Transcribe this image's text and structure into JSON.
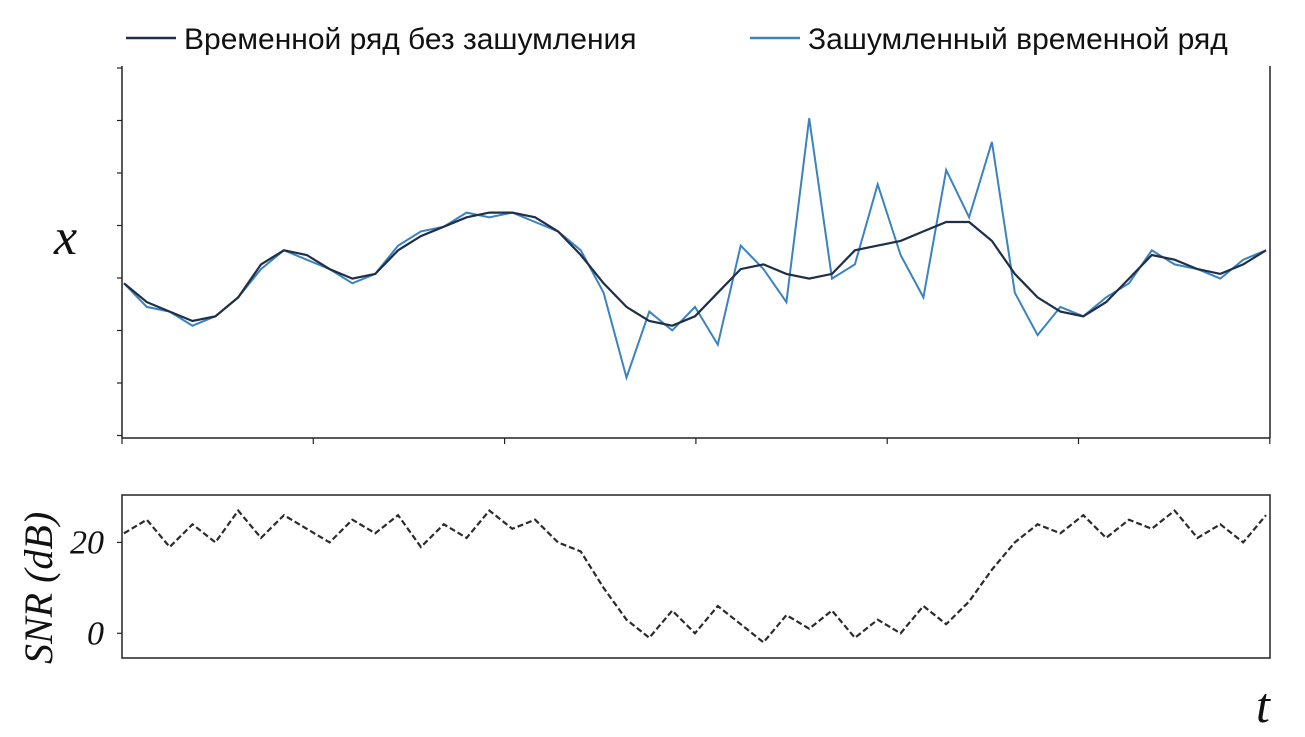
{
  "colors": {
    "clean": "#1f2f4a",
    "noisy": "#3a83c0",
    "snr": "#2b2b2b",
    "axis": "#222222"
  },
  "chart_data": [
    {
      "type": "line",
      "title": "",
      "xlabel": "t",
      "ylabel": "x",
      "legend": {
        "placement": "top",
        "entries": [
          {
            "label": "Временной ряд без зашумления",
            "color": "#1f2f4a"
          },
          {
            "label": "Зашумленный временной ряд",
            "color": "#3a83c0"
          }
        ]
      },
      "grid": false,
      "xlim": [
        0,
        100
      ],
      "ylim": [
        -3.5,
        3.5
      ],
      "x": [
        0,
        2,
        4,
        6,
        8,
        10,
        12,
        14,
        16,
        18,
        20,
        22,
        24,
        26,
        28,
        30,
        32,
        34,
        36,
        38,
        40,
        42,
        44,
        46,
        48,
        50,
        52,
        54,
        56,
        58,
        60,
        62,
        64,
        66,
        68,
        70,
        72,
        74,
        76,
        78,
        80,
        82,
        84,
        86,
        88,
        90,
        92,
        94,
        96,
        98,
        100
      ],
      "series": [
        {
          "name": "Временной ряд без зашумления",
          "values": [
            -0.6,
            -1.0,
            -1.2,
            -1.4,
            -1.3,
            -0.9,
            -0.2,
            0.1,
            0.0,
            -0.3,
            -0.5,
            -0.4,
            0.1,
            0.4,
            0.6,
            0.8,
            0.9,
            0.9,
            0.8,
            0.5,
            0.0,
            -0.6,
            -1.1,
            -1.4,
            -1.5,
            -1.3,
            -0.8,
            -0.3,
            -0.2,
            -0.4,
            -0.5,
            -0.4,
            0.1,
            0.2,
            0.3,
            0.5,
            0.7,
            0.7,
            0.3,
            -0.4,
            -0.9,
            -1.2,
            -1.3,
            -1.0,
            -0.5,
            0.0,
            -0.1,
            -0.3,
            -0.4,
            -0.2,
            0.1
          ]
        },
        {
          "name": "Зашумленный временной ряд",
          "values": [
            -0.6,
            -1.1,
            -1.2,
            -1.5,
            -1.3,
            -0.9,
            -0.3,
            0.1,
            -0.1,
            -0.3,
            -0.6,
            -0.4,
            0.2,
            0.5,
            0.6,
            0.9,
            0.8,
            0.9,
            0.7,
            0.5,
            0.1,
            -0.8,
            -2.6,
            -1.2,
            -1.6,
            -1.1,
            -1.9,
            0.2,
            -0.3,
            -1.0,
            2.9,
            -0.5,
            -0.2,
            1.5,
            0.0,
            -0.9,
            1.8,
            0.8,
            2.4,
            -0.8,
            -1.7,
            -1.1,
            -1.3,
            -0.9,
            -0.6,
            0.1,
            -0.2,
            -0.3,
            -0.5,
            -0.1,
            0.1
          ]
        }
      ]
    },
    {
      "type": "line",
      "title": "",
      "xlabel": "t",
      "ylabel": "SNR (dB)",
      "grid": false,
      "xlim": [
        0,
        100
      ],
      "ylim": [
        -5,
        30
      ],
      "yticks": [
        0,
        20
      ],
      "x": [
        0,
        2,
        4,
        6,
        8,
        10,
        12,
        14,
        16,
        18,
        20,
        22,
        24,
        26,
        28,
        30,
        32,
        34,
        36,
        38,
        40,
        42,
        44,
        46,
        48,
        50,
        52,
        54,
        56,
        58,
        60,
        62,
        64,
        66,
        68,
        70,
        72,
        74,
        76,
        78,
        80,
        82,
        84,
        86,
        88,
        90,
        92,
        94,
        96,
        98,
        100
      ],
      "series": [
        {
          "name": "",
          "values": [
            22,
            25,
            19,
            24,
            20,
            27,
            21,
            26,
            23,
            20,
            25,
            22,
            26,
            19,
            24,
            21,
            27,
            23,
            25,
            20,
            18,
            10,
            3,
            -1,
            5,
            0,
            6,
            2,
            -2,
            4,
            1,
            5,
            -1,
            3,
            0,
            6,
            2,
            7,
            14,
            20,
            24,
            22,
            26,
            21,
            25,
            23,
            27,
            21,
            24,
            20,
            26
          ]
        }
      ]
    }
  ]
}
